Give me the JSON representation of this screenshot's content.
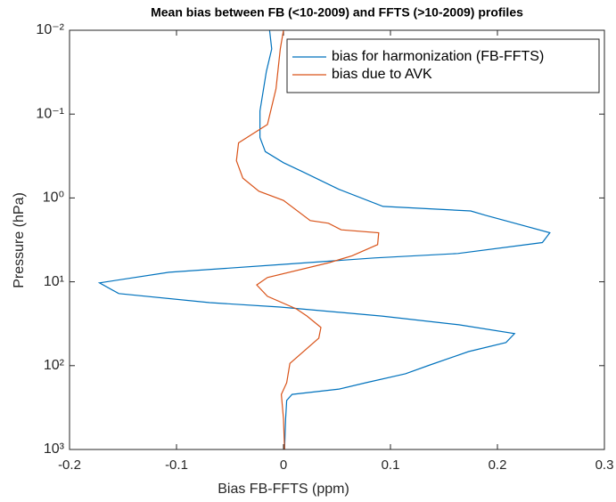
{
  "chart_data": {
    "type": "line",
    "title": "Mean bias between FB (<10-2009) and FFTS (>10-2009) profiles",
    "x_label": "Bias FB-FFTS (ppm)",
    "y_label": "Pressure (hPa)",
    "xlim": [
      -0.2,
      0.3
    ],
    "xticks": [
      -0.2,
      -0.1,
      0,
      0.1,
      0.2,
      0.3
    ],
    "ylim": [
      0.01,
      1000
    ],
    "y_log": true,
    "y_reversed": true,
    "yticks": [
      {
        "value": 0.01,
        "label": "10⁻²"
      },
      {
        "value": 0.1,
        "label": "10⁻¹"
      },
      {
        "value": 1,
        "label": "10⁰"
      },
      {
        "value": 10,
        "label": "10¹"
      },
      {
        "value": 100,
        "label": "10²"
      },
      {
        "value": 1000,
        "label": "10³"
      }
    ],
    "legend": "northeast",
    "series": [
      {
        "name": "bias for harmonization (FB-FFTS)",
        "color": "#0072bd",
        "x": [
          -0.013,
          -0.011,
          -0.016,
          -0.022,
          -0.022,
          -0.017,
          0,
          0.017,
          0.052,
          0.093,
          0.175,
          0.189,
          0.249,
          0.242,
          0.163,
          0.085,
          0,
          -0.107,
          -0.172,
          -0.154,
          -0.069,
          -0.003,
          0.092,
          0.164,
          0.216,
          0.208,
          0.173,
          0.137,
          0.114,
          0.077,
          0.052,
          0.008,
          0.003,
          0.002,
          0.001
        ],
        "y": [
          0.01,
          0.0167,
          0.031,
          0.092,
          0.19,
          0.28,
          0.38,
          0.48,
          0.79,
          1.26,
          1.43,
          1.61,
          2.6,
          3.4,
          4.6,
          5.2,
          6.2,
          7.7,
          10.3,
          13.8,
          17.7,
          20,
          25.6,
          32.6,
          41.5,
          53,
          68,
          98,
          125,
          160,
          190,
          220,
          260,
          430,
          1000
        ]
      },
      {
        "name": "bias due to AVK",
        "color": "#d95319",
        "x": [
          0,
          -0.003,
          -0.007,
          -0.015,
          -0.042,
          -0.044,
          -0.038,
          -0.023,
          0,
          0.025,
          0.042,
          0.054,
          0.089,
          0.088,
          0.064,
          0.043,
          -0.015,
          -0.025,
          -0.015,
          0.012,
          0.022,
          0.035,
          0.033,
          0.006,
          0.003,
          -0.002,
          0,
          0.001
        ],
        "y": [
          0.01,
          0.0167,
          0.05,
          0.133,
          0.22,
          0.36,
          0.58,
          0.83,
          1.07,
          1.86,
          2.0,
          2.4,
          2.6,
          3.6,
          4.9,
          5.9,
          8.9,
          10.9,
          14.9,
          21,
          25.6,
          35,
          47,
          94,
          160,
          220,
          430,
          1000
        ]
      }
    ]
  }
}
